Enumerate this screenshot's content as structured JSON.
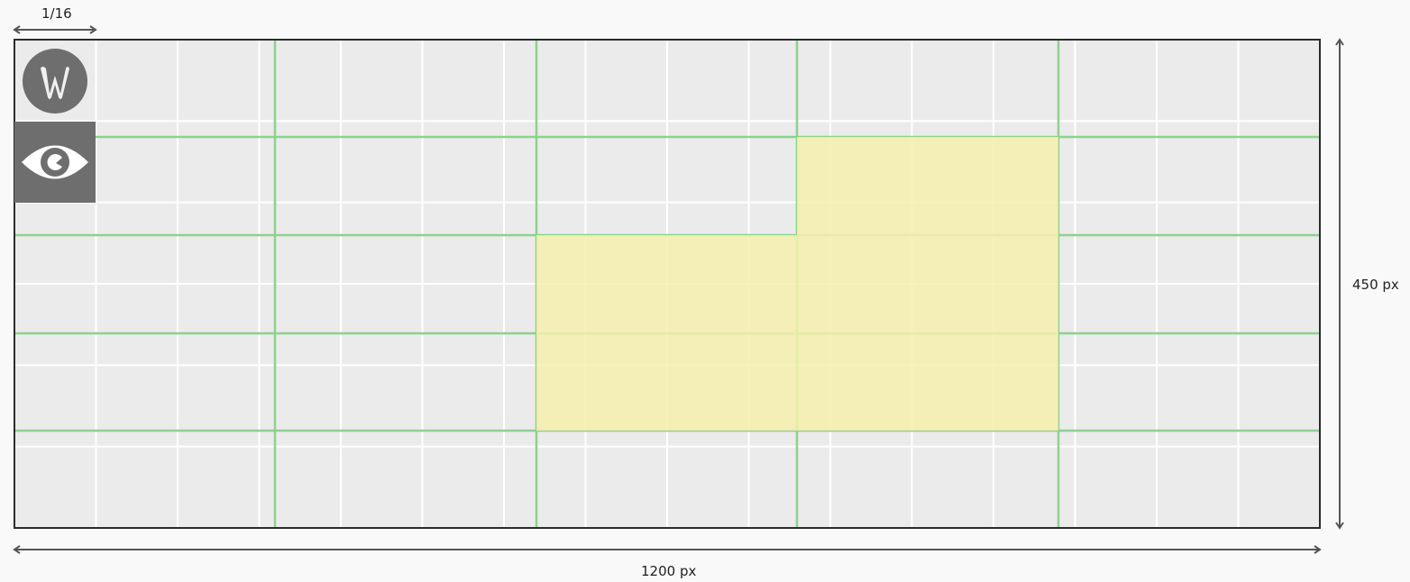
{
  "annotations": {
    "column_fraction_label": "1/16",
    "width_label": "1200 px",
    "height_label": "450 px"
  },
  "colors": {
    "canvas_bg": "#ebebeb",
    "grid_line": "#ffffff",
    "guide_line": "#8fd08f",
    "highlight": "#f4f0ad",
    "frame": "#2b2b2b",
    "icon_fill": "#6e6e6e",
    "arrow": "#555555"
  },
  "icons": [
    "logo-w-icon",
    "eye-icon"
  ]
}
